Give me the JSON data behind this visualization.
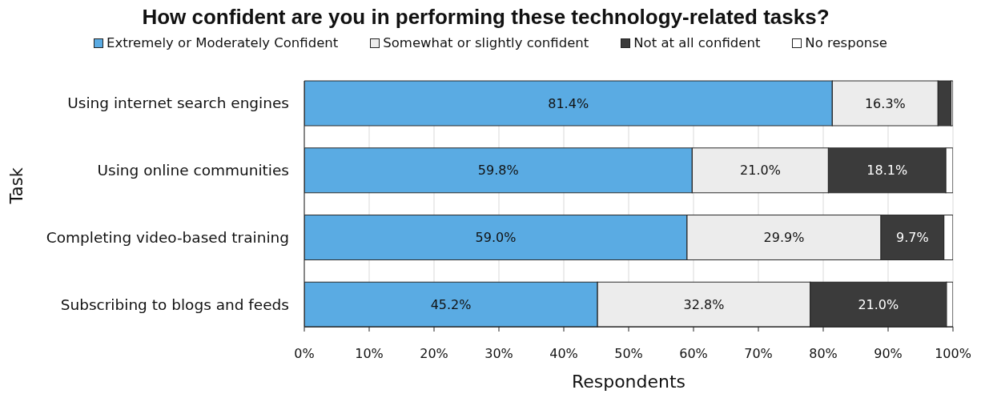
{
  "chart_data": {
    "type": "bar",
    "title": "How confident are you in performing these technology-related tasks?",
    "xlabel": "Respondents",
    "ylabel": "Task",
    "orientation": "horizontal",
    "stacked": true,
    "categories": [
      "Using internet search engines",
      "Using online communities",
      "Completing video-based training",
      "Subscribing to blogs and feeds"
    ],
    "series": [
      {
        "name": "Extremely or Moderately Confident",
        "color": "#5aabe3",
        "values": [
          81.4,
          59.8,
          59.0,
          45.2
        ],
        "value_labels": [
          "81.4%",
          "59.8%",
          "59.0%",
          "45.2%"
        ]
      },
      {
        "name": "Somewhat or slightly confident",
        "color": "#ececec",
        "values": [
          16.3,
          21.0,
          29.9,
          32.8
        ],
        "value_labels": [
          "16.3%",
          "21.0%",
          "29.9%",
          "32.8%"
        ]
      },
      {
        "name": "Not at all confident",
        "color": "#3b3b3b",
        "values": [
          2.0,
          18.1,
          9.7,
          21.0
        ],
        "value_labels": [
          null,
          "18.1%",
          "9.7%",
          "21.0%"
        ]
      },
      {
        "name": "No response",
        "color": "#ffffff",
        "values": [
          0.3,
          1.1,
          1.4,
          1.0
        ]
      }
    ],
    "xlim": [
      0,
      100
    ],
    "xticks": [
      {
        "value": 0,
        "label": "0%"
      },
      {
        "value": 10,
        "label": "10%"
      },
      {
        "value": 20,
        "label": "20%"
      },
      {
        "value": 30,
        "label": "30%"
      },
      {
        "value": 40,
        "label": "40%"
      },
      {
        "value": 50,
        "label": "50%"
      },
      {
        "value": 60,
        "label": "60%"
      },
      {
        "value": 70,
        "label": "70%"
      },
      {
        "value": 80,
        "label": "80%"
      },
      {
        "value": 90,
        "label": "90%"
      },
      {
        "value": 100,
        "label": "100%"
      }
    ],
    "grid": "x",
    "legend": "top"
  }
}
